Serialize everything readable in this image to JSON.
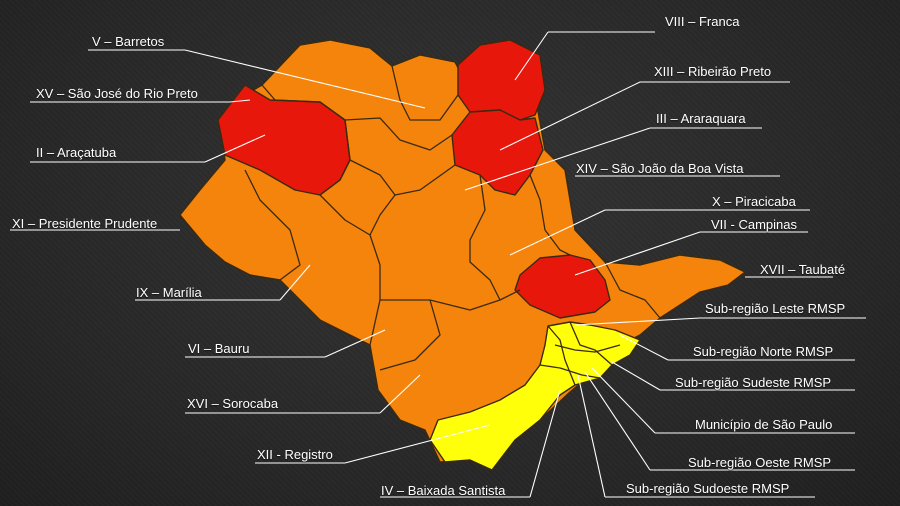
{
  "colors": {
    "background": "#2b2b2b",
    "high": "#e8170b",
    "medium": "#f5840d",
    "low": "#ffff0a",
    "border": "#3a2a10",
    "leader": "#ffffff"
  },
  "legend_colors_note": "",
  "regions": {
    "franca": {
      "label": "VIII – Franca",
      "level": "high"
    },
    "ribeirao_preto": {
      "label": "XIII – Ribeirão Preto",
      "level": "high"
    },
    "araraquara": {
      "label": "III – Araraquara",
      "level": "medium"
    },
    "sao_joao": {
      "label": "XIV – São João da Boa Vista",
      "level": "medium"
    },
    "piracicaba": {
      "label": "X – Piracicaba",
      "level": "medium"
    },
    "campinas": {
      "label": "VII - Campinas",
      "level": "high"
    },
    "taubate": {
      "label": "XVII – Taubaté",
      "level": "medium"
    },
    "leste": {
      "label": "Sub-região Leste RMSP",
      "level": "low"
    },
    "norte": {
      "label": "Sub-região Norte RMSP",
      "level": "low"
    },
    "sudeste": {
      "label": "Sub-região Sudeste RMSP",
      "level": "low"
    },
    "sao_paulo": {
      "label": "Município de São Paulo",
      "level": "low"
    },
    "oeste": {
      "label": "Sub-região Oeste RMSP",
      "level": "low"
    },
    "sudoeste": {
      "label": "Sub-região Sudoeste RMSP",
      "level": "low"
    },
    "baixada": {
      "label": "IV – Baixada Santista",
      "level": "low"
    },
    "registro": {
      "label": "XII - Registro",
      "level": "low"
    },
    "sorocaba": {
      "label": "XVI – Sorocaba",
      "level": "medium"
    },
    "bauru": {
      "label": "VI – Bauru",
      "level": "medium"
    },
    "marilia": {
      "label": "IX – Marília",
      "level": "medium"
    },
    "presidente_prudente": {
      "label": "XI – Presidente Prudente",
      "level": "medium"
    },
    "aracatuba": {
      "label": "II – Araçatuba",
      "level": "medium"
    },
    "sjrp": {
      "label": "XV – São José do Rio Preto",
      "level": "high"
    },
    "barretos": {
      "label": "V – Barretos",
      "level": "medium"
    }
  }
}
